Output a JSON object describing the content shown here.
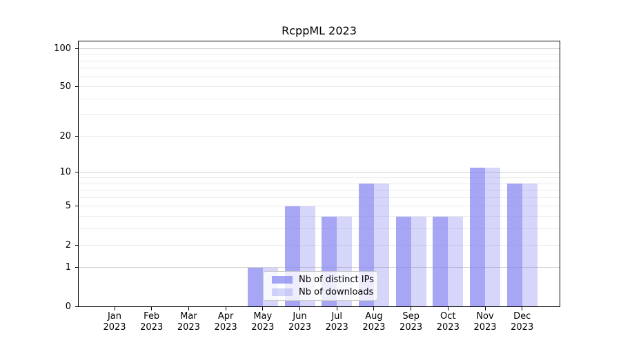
{
  "chart_data": {
    "type": "bar",
    "title": "RcppML 2023",
    "categories": [
      {
        "line1": "Jan",
        "line2": "2023"
      },
      {
        "line1": "Feb",
        "line2": "2023"
      },
      {
        "line1": "Mar",
        "line2": "2023"
      },
      {
        "line1": "Apr",
        "line2": "2023"
      },
      {
        "line1": "May",
        "line2": "2023"
      },
      {
        "line1": "Jun",
        "line2": "2023"
      },
      {
        "line1": "Jul",
        "line2": "2023"
      },
      {
        "line1": "Aug",
        "line2": "2023"
      },
      {
        "line1": "Sep",
        "line2": "2023"
      },
      {
        "line1": "Oct",
        "line2": "2023"
      },
      {
        "line1": "Nov",
        "line2": "2023"
      },
      {
        "line1": "Dec",
        "line2": "2023"
      }
    ],
    "series": [
      {
        "name": "Nb of distinct IPs",
        "color": "rgba(128,128,240,0.70)",
        "values": [
          0,
          0,
          0,
          0,
          1,
          5,
          4,
          8,
          4,
          4,
          11,
          8
        ]
      },
      {
        "name": "Nb of downloads",
        "color": "rgba(128,128,240,0.32)",
        "values": [
          0,
          0,
          0,
          0,
          1,
          5,
          4,
          8,
          4,
          4,
          11,
          8
        ]
      }
    ],
    "xlabel": "",
    "ylabel": "",
    "yscale": "log1p",
    "ylim": [
      0,
      114
    ],
    "ytick_values": [
      0,
      1,
      2,
      5,
      10,
      20,
      50,
      100
    ],
    "ytick_labels": [
      "0",
      "1",
      "2",
      "5",
      "10",
      "20",
      "50",
      "100"
    ],
    "grid": {
      "on": true,
      "minor_values": [
        2,
        3,
        4,
        5,
        6,
        7,
        8,
        9,
        20,
        30,
        40,
        50,
        60,
        70,
        80,
        90
      ],
      "major_values": [
        1,
        10,
        100
      ],
      "minor_color": "#eaeaea",
      "major_color": "#cfcfcf"
    },
    "legend": {
      "position": "inside-lower-left-of-center",
      "background": "rgba(255,255,255,0.8)",
      "border_color": "#cccccc"
    },
    "colors": {
      "spine": "#000000",
      "text": "#000000",
      "background": "#ffffff"
    }
  }
}
